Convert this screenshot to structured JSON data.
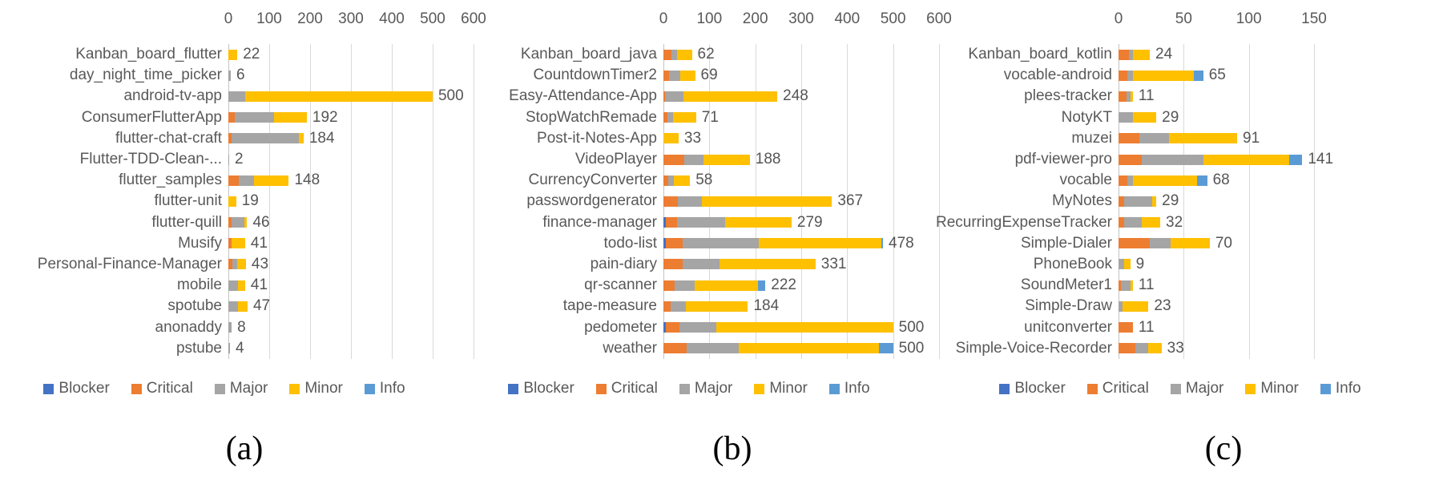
{
  "severity_colors": {
    "Blocker": "#4472C4",
    "Critical": "#ED7D31",
    "Major": "#A5A5A5",
    "Minor": "#FFC000",
    "Info": "#5B9BD5"
  },
  "legend_labels": [
    "Blocker",
    "Critical",
    "Major",
    "Minor",
    "Info"
  ],
  "chart_data": [
    {
      "type": "bar",
      "orientation": "horizontal-stacked",
      "caption": "(a)",
      "xlim": [
        0,
        600
      ],
      "ticks": [
        0,
        100,
        200,
        300,
        400,
        500,
        600
      ],
      "grid": true,
      "legend_position": "bottom",
      "categories": [
        "Kanban_board_flutter",
        "day_night_time_picker",
        "android-tv-app",
        "ConsumerFlutterApp",
        "flutter-chat-craft",
        "Flutter-TDD-Clean-...",
        "flutter_samples",
        "flutter-unit",
        "flutter-quill",
        "Musify",
        "Personal-Finance-Manager",
        "mobile",
        "spotube",
        "anonaddy",
        "pstube"
      ],
      "totals": [
        22,
        6,
        500,
        192,
        184,
        2,
        148,
        19,
        46,
        41,
        43,
        41,
        47,
        8,
        4
      ],
      "series": [
        {
          "name": "Blocker",
          "values": [
            0,
            0,
            0,
            0,
            0,
            0,
            0,
            0,
            0,
            0,
            0,
            0,
            0,
            0,
            0
          ]
        },
        {
          "name": "Critical",
          "values": [
            0,
            0,
            0,
            15,
            8,
            0,
            26,
            0,
            7,
            8,
            9,
            0,
            0,
            0,
            0
          ]
        },
        {
          "name": "Major",
          "values": [
            0,
            6,
            42,
            97,
            165,
            2,
            36,
            0,
            32,
            0,
            12,
            24,
            24,
            8,
            4
          ]
        },
        {
          "name": "Minor",
          "values": [
            22,
            0,
            458,
            80,
            11,
            0,
            86,
            19,
            7,
            33,
            22,
            17,
            23,
            0,
            0
          ]
        },
        {
          "name": "Info",
          "values": [
            0,
            0,
            0,
            0,
            0,
            0,
            0,
            0,
            0,
            0,
            0,
            0,
            0,
            0,
            0
          ]
        }
      ]
    },
    {
      "type": "bar",
      "orientation": "horizontal-stacked",
      "caption": "(b)",
      "xlim": [
        0,
        600
      ],
      "ticks": [
        0,
        100,
        200,
        300,
        400,
        500,
        600
      ],
      "grid": true,
      "legend_position": "bottom",
      "categories": [
        "Kanban_board_java",
        "CountdownTimer2",
        "Easy-Attendance-App",
        "StopWatchRemade",
        "Post-it-Notes-App",
        "VideoPlayer",
        "CurrencyConverter",
        "passwordgenerator",
        "finance-manager",
        "todo-list",
        "pain-diary",
        "qr-scanner",
        "tape-measure",
        "pedometer",
        "weather"
      ],
      "totals": [
        62,
        69,
        248,
        71,
        33,
        188,
        58,
        367,
        279,
        478,
        331,
        222,
        184,
        500,
        500
      ],
      "series": [
        {
          "name": "Blocker",
          "values": [
            0,
            0,
            0,
            0,
            0,
            0,
            0,
            0,
            6,
            6,
            0,
            0,
            0,
            5,
            0
          ]
        },
        {
          "name": "Critical",
          "values": [
            17,
            13,
            3,
            9,
            0,
            45,
            10,
            31,
            24,
            36,
            41,
            25,
            16,
            30,
            50
          ]
        },
        {
          "name": "Major",
          "values": [
            12,
            24,
            40,
            12,
            0,
            42,
            13,
            52,
            105,
            166,
            81,
            43,
            33,
            80,
            114
          ]
        },
        {
          "name": "Minor",
          "values": [
            33,
            32,
            205,
            50,
            33,
            101,
            35,
            284,
            144,
            266,
            209,
            138,
            135,
            385,
            305
          ]
        },
        {
          "name": "Info",
          "values": [
            0,
            0,
            0,
            0,
            0,
            0,
            0,
            0,
            0,
            4,
            0,
            16,
            0,
            0,
            31
          ]
        }
      ]
    },
    {
      "type": "bar",
      "orientation": "horizontal-stacked",
      "caption": "(c)",
      "xlim": [
        0,
        150
      ],
      "ticks": [
        0,
        50,
        100,
        150
      ],
      "grid": true,
      "legend_position": "bottom",
      "categories": [
        "Kanban_board_kotlin",
        "vocable-android",
        "plees-tracker",
        "NotyKT",
        "muzei",
        "pdf-viewer-pro",
        "vocable",
        "MyNotes",
        "RecurringExpenseTracker",
        "Simple-Dialer",
        "PhoneBook",
        "SoundMeter1",
        "Simple-Draw",
        "unitconverter",
        "Simple-Voice-Recorder"
      ],
      "totals": [
        24,
        65,
        11,
        29,
        91,
        141,
        68,
        29,
        32,
        70,
        9,
        11,
        23,
        11,
        33
      ],
      "series": [
        {
          "name": "Blocker",
          "values": [
            0,
            0,
            0,
            0,
            0,
            0,
            0,
            0,
            0,
            0,
            0,
            0,
            0,
            0,
            0
          ]
        },
        {
          "name": "Critical",
          "values": [
            8,
            7,
            6,
            0,
            16,
            18,
            7,
            4,
            4,
            24,
            0,
            2,
            0,
            11,
            13
          ]
        },
        {
          "name": "Major",
          "values": [
            3,
            4,
            3,
            11,
            23,
            47,
            4,
            22,
            14,
            16,
            4,
            7,
            3,
            0,
            10
          ]
        },
        {
          "name": "Minor",
          "values": [
            13,
            47,
            2,
            18,
            52,
            66,
            49,
            3,
            14,
            30,
            5,
            2,
            20,
            0,
            10
          ]
        },
        {
          "name": "Info",
          "values": [
            0,
            7,
            0,
            0,
            0,
            10,
            8,
            0,
            0,
            0,
            0,
            0,
            0,
            0,
            0
          ]
        }
      ]
    }
  ]
}
